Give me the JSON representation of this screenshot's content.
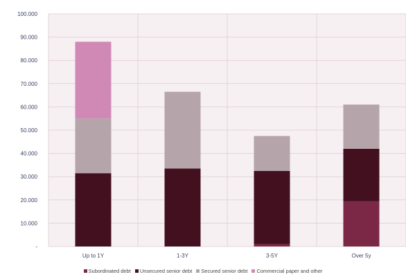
{
  "chart_data": {
    "type": "bar",
    "stacked": true,
    "title": "",
    "xlabel": "",
    "ylabel": "",
    "categories": [
      "Up to 1Y",
      "1-3Y",
      "3-5Y",
      "Over 5y"
    ],
    "ylim": [
      0,
      100000
    ],
    "yticks": [
      {
        "value": 0,
        "label": "-"
      },
      {
        "value": 10000,
        "label": "10.000"
      },
      {
        "value": 20000,
        "label": "20.000"
      },
      {
        "value": 30000,
        "label": "30.000"
      },
      {
        "value": 40000,
        "label": "40.000"
      },
      {
        "value": 50000,
        "label": "50.000"
      },
      {
        "value": 60000,
        "label": "60.000"
      },
      {
        "value": 70000,
        "label": "70.000"
      },
      {
        "value": 80000,
        "label": "80.000"
      },
      {
        "value": 90000,
        "label": "90.000"
      },
      {
        "value": 100000,
        "label": "100.000"
      }
    ],
    "grid": true,
    "legend_position": "bottom",
    "series": [
      {
        "name": "Subordinated debt",
        "color": "#7b2846",
        "values": [
          0,
          0,
          1000,
          19500
        ]
      },
      {
        "name": "Unsecured senior debt",
        "color": "#43101f",
        "values": [
          31500,
          33500,
          31500,
          22500
        ]
      },
      {
        "name": "Secured senior debt",
        "color": "#b5a5ab",
        "values": [
          23500,
          33000,
          15000,
          19000
        ]
      },
      {
        "name": "Commercial paper and other",
        "color": "#d089b5",
        "values": [
          33000,
          0,
          0,
          0
        ]
      }
    ]
  }
}
